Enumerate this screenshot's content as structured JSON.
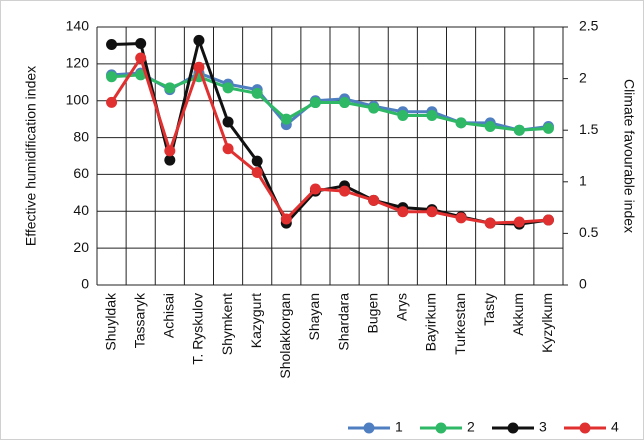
{
  "chart_data": {
    "type": "line",
    "y_label": "Effective humidification index",
    "y2_label": "Climate favourable index",
    "categories": [
      "Shuyldak",
      "Tassaryk",
      "Achisai",
      "T. Ryskulov",
      "Shymkent",
      "Kazygurt",
      "Sholakkorgan",
      "Shayan",
      "Shardara",
      "Bugen",
      "Arys",
      "Bayirkum",
      "Turkestan",
      "Tasty",
      "Akkum",
      "Kyzylkum"
    ],
    "ylim": [
      0,
      140
    ],
    "yticks": [
      0,
      20,
      40,
      60,
      80,
      100,
      120,
      140
    ],
    "y2lim": [
      0,
      2.5
    ],
    "y2ticks": [
      0,
      0.5,
      1,
      1.5,
      2,
      2.5
    ],
    "grid": true,
    "legend": "bottom-right",
    "series": [
      {
        "name": "1",
        "color": "#4f7fc0",
        "values": [
          114,
          115,
          106,
          115,
          109,
          106,
          87,
          100,
          101,
          97,
          94,
          94,
          88,
          88,
          84,
          86
        ]
      },
      {
        "name": "2",
        "color": "#2fb866",
        "values": [
          113,
          114,
          107,
          113,
          107,
          104,
          90,
          99,
          99,
          96,
          92,
          92,
          88,
          86,
          84,
          85
        ]
      },
      {
        "name": "3",
        "color": "#111111",
        "axis": "y2",
        "values": [
          2.33,
          2.34,
          1.21,
          2.37,
          1.58,
          1.2,
          0.6,
          0.91,
          0.96,
          0.82,
          0.75,
          0.73,
          0.66,
          0.6,
          0.59,
          0.63
        ]
      },
      {
        "name": "4",
        "color": "#e03030",
        "axis": "y2",
        "values": [
          1.77,
          2.2,
          1.3,
          2.11,
          1.32,
          1.09,
          0.64,
          0.93,
          0.91,
          0.82,
          0.71,
          0.71,
          0.65,
          0.6,
          0.61,
          0.63
        ]
      }
    ]
  }
}
